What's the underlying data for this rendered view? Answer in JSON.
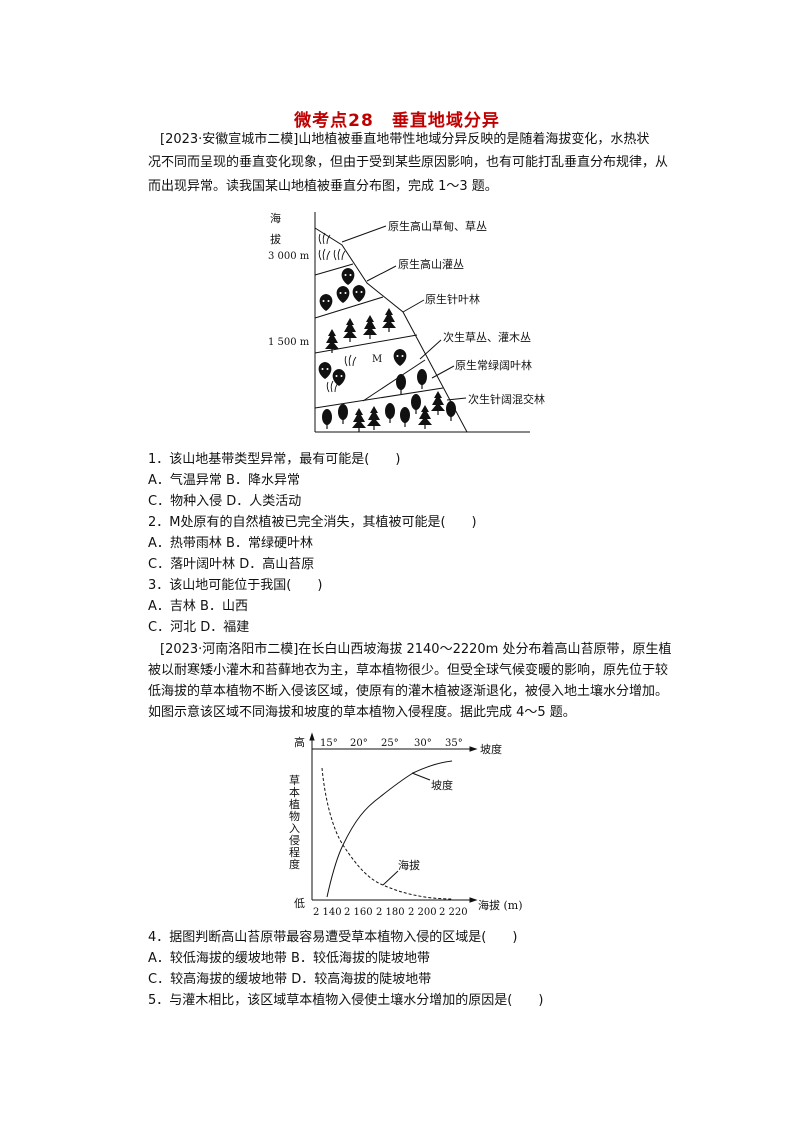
{
  "title": "微考点28　垂直地域分异",
  "intro1": [
    "[2023·安徽宣城市二模]山地植被垂直地带性地域分异反映的是随着海拔变化，水热状",
    "况不同而呈现的垂直变化现象，但由于受到某些原因影响，也有可能打乱垂直分布规律，从",
    "而出现异常。读我国某山地植被垂直分布图，完成 1～3 题。"
  ],
  "figure1": {
    "axis_label_1": "海",
    "axis_label_2": "拔",
    "tick_3000": "3 000 m",
    "tick_1500": "1 500 m",
    "marker": "M",
    "zones": [
      "原生高山草甸、草丛",
      "原生高山灌丛",
      "原生针叶林",
      "次生草丛、灌木丛",
      "原生常绿阔叶林",
      "次生针阔混交林"
    ]
  },
  "questions1": [
    "1．该山地基带类型异常，最有可能是(　　)",
    "A．气温异常 B．降水异常",
    "C．物种入侵 D．人类活动",
    "2．M处原有的自然植被已完全消失，其植被可能是(　　)",
    "A．热带雨林 B．常绿硬叶林",
    "C．落叶阔叶林 D．高山苔原",
    "3．该山地可能位于我国(　　)",
    "A．吉林 B．山西",
    "C．河北 D．福建"
  ],
  "intro2": [
    "[2023·河南洛阳市二模]在长白山西坡海拔 2140～2220m 处分布着高山苔原带，原生植",
    "被以耐寒矮小灌木和苔藓地衣为主，草本植物很少。但受全球气候变暖的影响，原先位于较",
    "低海拔的草本植物不断入侵该区域，使原有的灌木植被逐渐退化，被侵入地土壤水分增加。",
    "如图示意该区域不同海拔和坡度的草本植物入侵程度。据此完成 4～5 题。"
  ],
  "chart_data": {
    "type": "line",
    "ylabel": "草本植物入侵程度",
    "y_high": "高",
    "y_low": "低",
    "xlabel_bottom": "海拔 (m)",
    "x_ticks_bottom": [
      "2 140",
      "2 160",
      "2 180",
      "2 200",
      "2 220"
    ],
    "xlabel_top": "坡度",
    "x_ticks_top": [
      "15°",
      "20°",
      "25°",
      "30°",
      "35°"
    ],
    "series": [
      {
        "name": "坡度",
        "trend": "increasing",
        "style": "solid"
      },
      {
        "name": "海拔",
        "trend": "decreasing",
        "style": "dashed"
      }
    ]
  },
  "questions2": [
    "4．据图判断高山苔原带最容易遭受草本植物入侵的区域是(　　)",
    "A．较低海拔的缓坡地带 B．较低海拔的陡坡地带",
    "C．较高海拔的缓坡地带 D．较高海拔的陡坡地带",
    "5．与灌木相比，该区域草本植物入侵使土壤水分增加的原因是(　　)"
  ],
  "colors": {
    "title": "#c00000",
    "text": "#111111"
  }
}
